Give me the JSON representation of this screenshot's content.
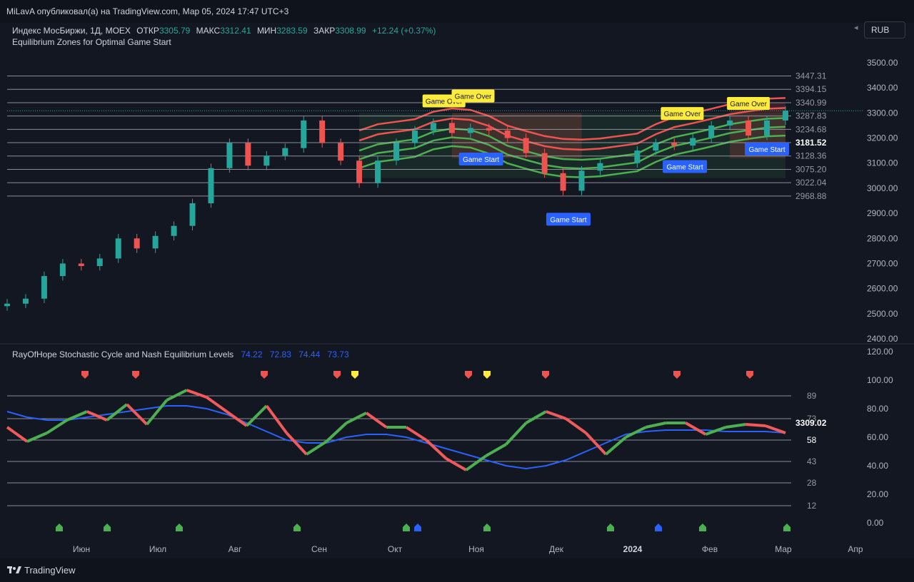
{
  "header": {
    "published": "MiLavA опубликовал(а) на TradingView.com, Мар 05, 2024 17:47 UTC+3"
  },
  "legend": {
    "symbol": "Индекс МосБиржи, 1Д, MOEX",
    "open_label": "ОТКР",
    "open": "3305.79",
    "high_label": "МАКС",
    "high": "3312.41",
    "low_label": "МИН",
    "low": "3283.59",
    "close_label": "ЗАКР",
    "close": "3308.99",
    "change": "+12.24 (+0.37%)",
    "indicator": "Equilibrium Zones for Optimal Game Start"
  },
  "currency_button": "RUB",
  "pane2_legend": {
    "name": "RayOfHope Stochastic Cycle and Nash Equilibrium Levels",
    "values": [
      "74.22",
      "72.83",
      "74.44",
      "73.73"
    ]
  },
  "footer": {
    "brand": "TradingView"
  },
  "colors": {
    "bg": "#131722",
    "up": "#26a69a",
    "down": "#ef5350",
    "green_line": "#4caf50",
    "red_line": "#f05a5a",
    "blue": "#2962ff",
    "yellow": "#ffeb3b",
    "label_yellow": "#ffeb3b",
    "label_blue": "#2962ff"
  },
  "chart_data": [
    {
      "type": "candlestick",
      "title": "Индекс МосБиржи, 1Д, MOEX",
      "y_ticks": [
        2400,
        2500,
        2600,
        2700,
        2800,
        2900,
        3000,
        3100,
        3200,
        3300,
        3400,
        3500
      ],
      "y_tick_labels": [
        "2400.00",
        "2500.00",
        "2600.00",
        "2700.00",
        "2800.00",
        "2900.00",
        "3000.00",
        "3100.00",
        "3200.00",
        "3300.00",
        "3400.00",
        "3500.00"
      ],
      "ylim": [
        2400,
        3500
      ],
      "x_tick_labels": [
        "Июн",
        "Июл",
        "Авг",
        "Сен",
        "Окт",
        "Ноя",
        "Дек",
        "2024",
        "Фев",
        "Мар",
        "Апр"
      ],
      "close_series": [
        [
          "2023-05-15",
          2540
        ],
        [
          "2023-05-22",
          2560
        ],
        [
          "2023-05-29",
          2650
        ],
        [
          "2023-06-05",
          2700
        ],
        [
          "2023-06-12",
          2690
        ],
        [
          "2023-06-19",
          2720
        ],
        [
          "2023-06-26",
          2800
        ],
        [
          "2023-07-03",
          2760
        ],
        [
          "2023-07-10",
          2810
        ],
        [
          "2023-07-17",
          2850
        ],
        [
          "2023-07-24",
          2940
        ],
        [
          "2023-07-31",
          3080
        ],
        [
          "2023-08-07",
          3180
        ],
        [
          "2023-08-14",
          3090
        ],
        [
          "2023-08-21",
          3130
        ],
        [
          "2023-08-28",
          3160
        ],
        [
          "2023-09-04",
          3270
        ],
        [
          "2023-09-11",
          3180
        ],
        [
          "2023-09-18",
          3110
        ],
        [
          "2023-09-25",
          3020
        ],
        [
          "2023-10-02",
          3110
        ],
        [
          "2023-10-09",
          3180
        ],
        [
          "2023-10-16",
          3230
        ],
        [
          "2023-10-23",
          3260
        ],
        [
          "2023-10-30",
          3220
        ],
        [
          "2023-11-06",
          3240
        ],
        [
          "2023-11-13",
          3230
        ],
        [
          "2023-11-20",
          3200
        ],
        [
          "2023-11-27",
          3140
        ],
        [
          "2023-12-04",
          3060
        ],
        [
          "2023-12-11",
          2990
        ],
        [
          "2023-12-18",
          3070
        ],
        [
          "2023-12-25",
          3100
        ],
        [
          "2024-01-08",
          3150
        ],
        [
          "2024-01-15",
          3180
        ],
        [
          "2024-01-22",
          3170
        ],
        [
          "2024-01-29",
          3200
        ],
        [
          "2024-02-05",
          3250
        ],
        [
          "2024-02-12",
          3270
        ],
        [
          "2024-02-19",
          3210
        ],
        [
          "2024-02-26",
          3270
        ],
        [
          "2024-03-04",
          3309
        ]
      ],
      "horizontal_levels": [
        3447.31,
        3394.15,
        3340.99,
        3287.83,
        3234.68,
        3181.52,
        3128.36,
        3075.2,
        3022.04,
        2968.88
      ],
      "horizontal_level_labels": [
        "3447.31",
        "3394.15",
        "3340.99",
        "3287.83",
        "3234.68",
        "3181.52",
        "3128.36",
        "3075.20",
        "3022.04",
        "2968.88"
      ],
      "annotations": [
        {
          "text": "Game Over",
          "date": "2023-10-27"
        },
        {
          "text": "Game Over",
          "date": "2023-11-07"
        },
        {
          "text": "Game Over",
          "date": "2024-01-25"
        },
        {
          "text": "Game Over",
          "date": "2024-02-19"
        },
        {
          "text": "Game Start",
          "date": "2023-11-10"
        },
        {
          "text": "Game Start",
          "date": "2023-12-13"
        },
        {
          "text": "Game Start",
          "date": "2024-01-26"
        },
        {
          "text": "Game Start",
          "date": "2024-02-26"
        }
      ]
    },
    {
      "type": "line",
      "title": "RayOfHope Stochastic Cycle and Nash Equilibrium Levels",
      "y_ticks": [
        0,
        20,
        40,
        60,
        80,
        100,
        120
      ],
      "y_tick_labels": [
        "0.00",
        "20.00",
        "40.00",
        "60.00",
        "80.00",
        "100.00",
        "120.00"
      ],
      "ylim": [
        -8,
        120
      ],
      "levels": [
        89,
        73,
        58,
        43,
        28,
        12
      ],
      "level_labels": [
        "89",
        "73",
        "58",
        "43",
        "28",
        "12"
      ],
      "last_value_label": "3309.02",
      "series": [
        {
          "values": [
            67,
            57,
            63,
            72,
            78,
            72,
            83,
            69,
            86,
            93,
            88,
            78,
            68,
            82,
            63,
            48,
            57,
            70,
            77,
            67,
            67,
            58,
            45,
            37,
            47,
            55,
            70,
            78,
            73,
            63,
            48,
            60,
            67,
            70,
            70,
            62,
            67,
            69,
            68,
            63
          ]
        },
        {
          "values": [
            78,
            74,
            72,
            72,
            74,
            76,
            78,
            80,
            82,
            82,
            80,
            76,
            70,
            64,
            58,
            56,
            56,
            60,
            62,
            62,
            60,
            56,
            52,
            48,
            44,
            40,
            38,
            40,
            44,
            50,
            56,
            62,
            64,
            65,
            65,
            65,
            64,
            64,
            64,
            63
          ]
        }
      ]
    }
  ]
}
